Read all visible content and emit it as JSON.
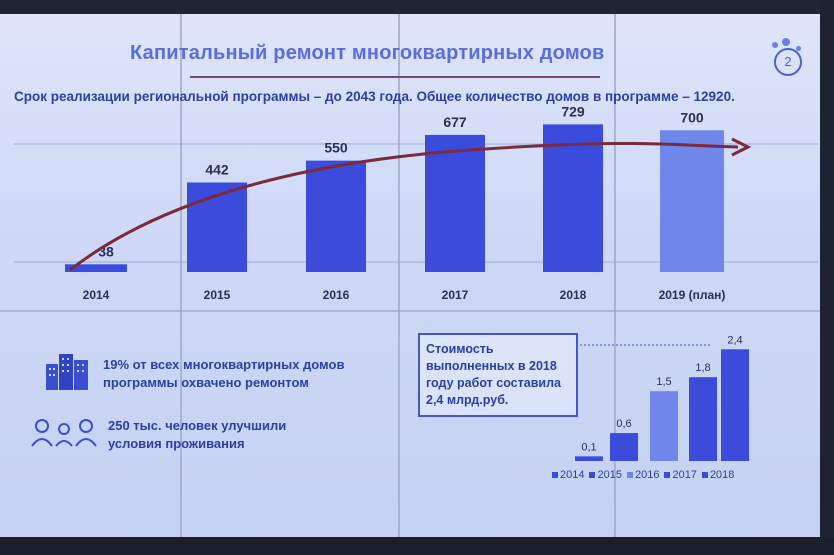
{
  "slide": {
    "title": "Капитальный ремонт многоквартирных домов",
    "page_number": "2",
    "subtitle": "Срок реализации региональной программы – до 2043 года. Общее количество домов в программе – 12920."
  },
  "stats": {
    "stat1_line1": "19% от всех многоквартирных домов",
    "stat1_line2": "программы охвачено ремонтом",
    "stat2_line1": "250 тыс. человек улучшили",
    "stat2_line2": "условия проживания"
  },
  "cost_box": {
    "line1": "Стоимость",
    "line2": "выполненных в 2018",
    "line3": "году работ составила",
    "line4": "2,4 млрд.руб."
  },
  "colors": {
    "bar_main": "#3b4bdc",
    "bar_light": "#6f86ea",
    "arrow": "#7a2a3e",
    "text": "#2b3fa8",
    "title": "#5a6ce0"
  },
  "chart_data": [
    {
      "type": "bar",
      "categories": [
        "2014",
        "2015",
        "2016",
        "2017",
        "2018",
        "2019 (план)"
      ],
      "values": [
        38,
        442,
        550,
        677,
        729,
        700
      ],
      "title": "",
      "xlabel": "",
      "ylabel": "",
      "ylim": [
        0,
        800
      ],
      "grid": true,
      "trend_arrow": true
    },
    {
      "type": "bar",
      "categories": [
        "2014",
        "2015",
        "2016",
        "2017",
        "2018"
      ],
      "values": [
        0.1,
        0.6,
        1.5,
        1.8,
        2.4
      ],
      "value_labels": [
        "0,1",
        "0,6",
        "1,5",
        "1,8",
        "2,4"
      ],
      "legend": [
        "2014",
        "2015",
        "2016",
        "2017",
        "2018"
      ],
      "legend_position": "bottom",
      "ylim": [
        0,
        2.6
      ]
    }
  ]
}
